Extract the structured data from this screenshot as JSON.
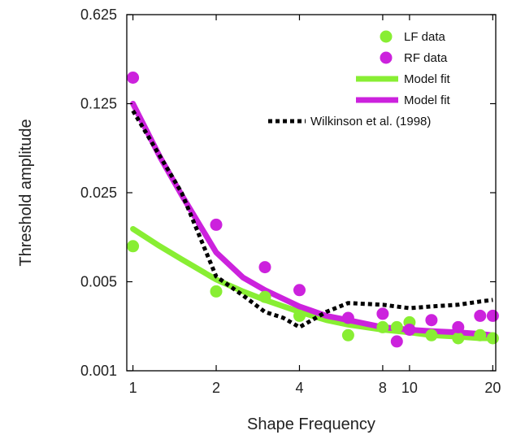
{
  "chart_data": {
    "type": "scatter",
    "xlabel": "Shape Frequency",
    "ylabel": "Threshold amplitude",
    "x_scale": "log",
    "y_scale": "log",
    "xlim": [
      0.95,
      20.5
    ],
    "ylim": [
      0.001,
      0.625
    ],
    "x_ticks": [
      1,
      2,
      4,
      8,
      10,
      20
    ],
    "y_ticks": [
      0.001,
      0.005,
      0.025,
      0.125,
      0.625
    ],
    "x_tick_labels": [
      "1",
      "2",
      "4",
      "8",
      "10",
      "20"
    ],
    "y_tick_labels": [
      "0.001",
      "0.005",
      "0.025",
      "0.125",
      "0.625"
    ],
    "legend_position": "top-right",
    "grid": false,
    "series": [
      {
        "name": "LF data",
        "kind": "points",
        "color": "#88ee33",
        "x": [
          1,
          2,
          3,
          4,
          6,
          8,
          9,
          10,
          12,
          15,
          18,
          20
        ],
        "y": [
          0.0095,
          0.0042,
          0.0038,
          0.0027,
          0.0019,
          0.0022,
          0.0022,
          0.0024,
          0.0019,
          0.0018,
          0.0019,
          0.0018
        ]
      },
      {
        "name": "RF data",
        "kind": "points",
        "color": "#cc22dd",
        "x": [
          1,
          2,
          3,
          4,
          6,
          8,
          9,
          10,
          12,
          15,
          18,
          20
        ],
        "y": [
          0.2,
          0.014,
          0.0065,
          0.0043,
          0.0026,
          0.0028,
          0.0017,
          0.0021,
          0.0025,
          0.0022,
          0.0027,
          0.0027
        ]
      },
      {
        "name": "Model fit",
        "kind": "line",
        "color": "#88ee33",
        "x": [
          1,
          1.25,
          1.5,
          2,
          2.5,
          3,
          4,
          5,
          6,
          8,
          10,
          12,
          15,
          18,
          20
        ],
        "y": [
          0.013,
          0.0095,
          0.0075,
          0.0052,
          0.0042,
          0.0036,
          0.0029,
          0.0025,
          0.0023,
          0.0021,
          0.002,
          0.0019,
          0.00185,
          0.0018,
          0.0018
        ]
      },
      {
        "name": "Model fit",
        "kind": "line",
        "color": "#cc22dd",
        "x": [
          1,
          1.25,
          1.5,
          2,
          2.5,
          3,
          4,
          5,
          6,
          8,
          10,
          12,
          15,
          18,
          20
        ],
        "y": [
          0.125,
          0.048,
          0.024,
          0.0085,
          0.0054,
          0.0043,
          0.0032,
          0.0027,
          0.0025,
          0.0022,
          0.0021,
          0.00205,
          0.002,
          0.00195,
          0.0019
        ]
      },
      {
        "name": "Wilkinson et al. (1998)",
        "kind": "line",
        "dashed": true,
        "color": "#000000",
        "x": [
          1,
          1.5,
          2,
          2.5,
          3,
          3.5,
          4,
          5,
          6,
          8,
          10,
          12,
          15,
          18,
          20
        ],
        "y": [
          0.11,
          0.025,
          0.0055,
          0.0039,
          0.0029,
          0.0026,
          0.0022,
          0.0029,
          0.0034,
          0.0033,
          0.0031,
          0.0032,
          0.0033,
          0.0035,
          0.0036
        ]
      }
    ]
  }
}
